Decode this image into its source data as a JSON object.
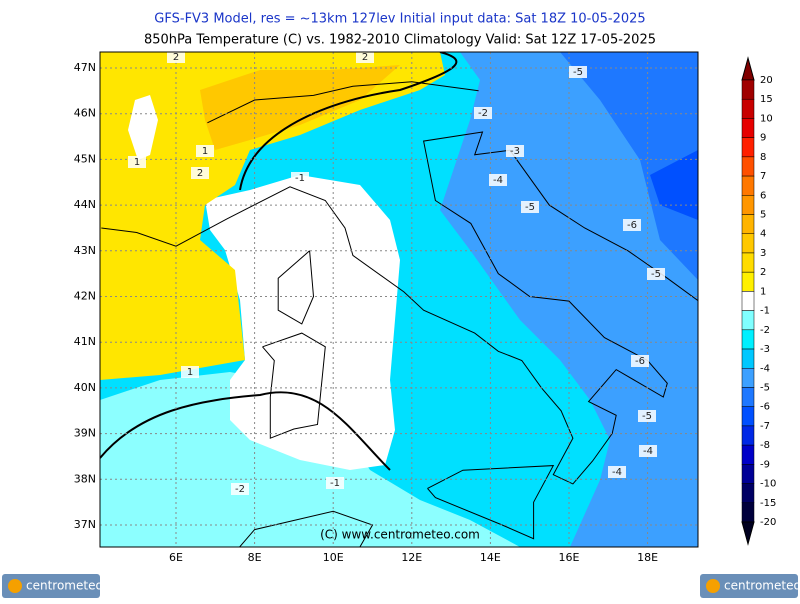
{
  "header": {
    "line1": "GFS-FV3 Model, res = ~13km 127lev    Initial input data: Sat 18Z 10-05-2025",
    "line2": "850hPa Temperature (C) vs. 1982-2010 Climatology   Valid: Sat 12Z 17-05-2025"
  },
  "map": {
    "lat_ticks": [
      {
        "value": 47,
        "label": "47N"
      },
      {
        "value": 46,
        "label": "46N"
      },
      {
        "value": 45,
        "label": "45N"
      },
      {
        "value": 44,
        "label": "44N"
      },
      {
        "value": 43,
        "label": "43N"
      },
      {
        "value": 42,
        "label": "42N"
      },
      {
        "value": 41,
        "label": "41N"
      },
      {
        "value": 40,
        "label": "40N"
      },
      {
        "value": 39,
        "label": "39N"
      },
      {
        "value": 38,
        "label": "38N"
      },
      {
        "value": 37,
        "label": "37N"
      }
    ],
    "lon_ticks": [
      {
        "value": 6,
        "label": "6E"
      },
      {
        "value": 8,
        "label": "8E"
      },
      {
        "value": 10,
        "label": "10E"
      },
      {
        "value": 12,
        "label": "12E"
      },
      {
        "value": 14,
        "label": "14E"
      },
      {
        "value": 16,
        "label": "16E"
      },
      {
        "value": 18,
        "label": "18E"
      }
    ],
    "contour_labels": [
      2,
      2,
      1,
      2,
      1,
      -1,
      -2,
      -3,
      -4,
      -5,
      -5,
      -6,
      -5,
      -6,
      -5,
      -4,
      -4,
      1,
      -1,
      -2
    ],
    "copyright": "(C) www.centrometeo.com"
  },
  "colorbar": {
    "levels": [
      20,
      15,
      10,
      9,
      8,
      7,
      6,
      5,
      4,
      3,
      2,
      1,
      -1,
      -2,
      -3,
      -4,
      -5,
      -6,
      -7,
      -8,
      -9,
      -10,
      -15,
      -20
    ],
    "colors": [
      "#800000",
      "#a00000",
      "#c80000",
      "#e60000",
      "#ff2000",
      "#ff5000",
      "#ff7800",
      "#ff9600",
      "#ffb400",
      "#ffc800",
      "#ffdc00",
      "#fff000",
      "#ffffff",
      "#80ffff",
      "#00f0ff",
      "#00c8ff",
      "#3ca0ff",
      "#1e78ff",
      "#0050ff",
      "#0028e6",
      "#0000c8",
      "#000096",
      "#000064",
      "#00003c",
      "#000020"
    ]
  },
  "footer": {
    "logo": "centrometeo"
  }
}
